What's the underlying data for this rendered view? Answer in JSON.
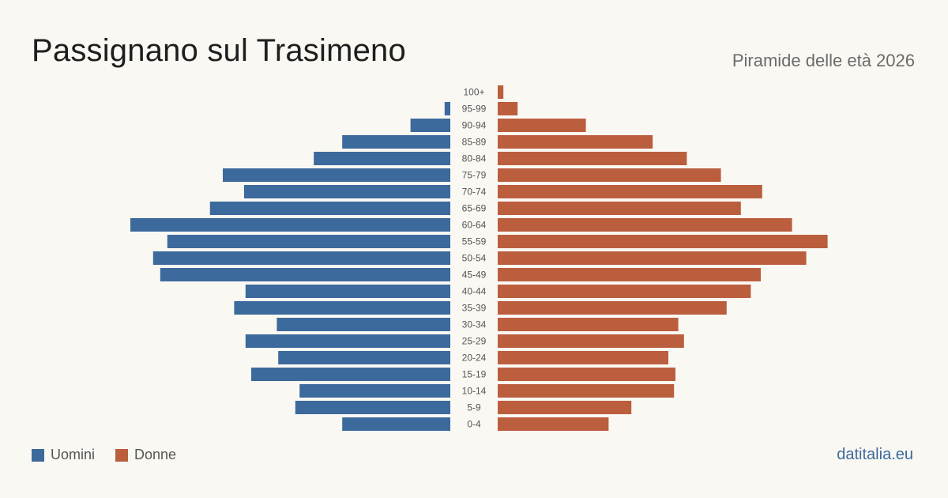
{
  "header": {
    "title": "Passignano sul Trasimeno",
    "subtitle": "Piramide delle età 2026"
  },
  "legend": {
    "men_label": "Uomini",
    "women_label": "Donne"
  },
  "source": "datitalia.eu",
  "colors": {
    "men": "#3c6a9c",
    "women": "#bb5e3e"
  },
  "chart_data": {
    "type": "bar",
    "orientation": "horizontal-pyramid",
    "categories": [
      "100+",
      "95-99",
      "90-94",
      "85-89",
      "80-84",
      "75-79",
      "70-74",
      "65-69",
      "60-64",
      "55-59",
      "50-54",
      "45-49",
      "40-44",
      "35-39",
      "30-34",
      "25-29",
      "20-24",
      "15-19",
      "10-14",
      "5-9",
      "0-4"
    ],
    "series": [
      {
        "name": "Uomini",
        "values": [
          0,
          4,
          28,
          76,
          96,
          160,
          145,
          169,
          225,
          199,
          209,
          204,
          144,
          152,
          122,
          144,
          121,
          140,
          106,
          109,
          76
        ]
      },
      {
        "name": "Donne",
        "values": [
          4,
          14,
          62,
          109,
          133,
          157,
          186,
          171,
          207,
          232,
          217,
          185,
          178,
          161,
          127,
          131,
          120,
          125,
          124,
          94,
          78
        ]
      }
    ]
  }
}
